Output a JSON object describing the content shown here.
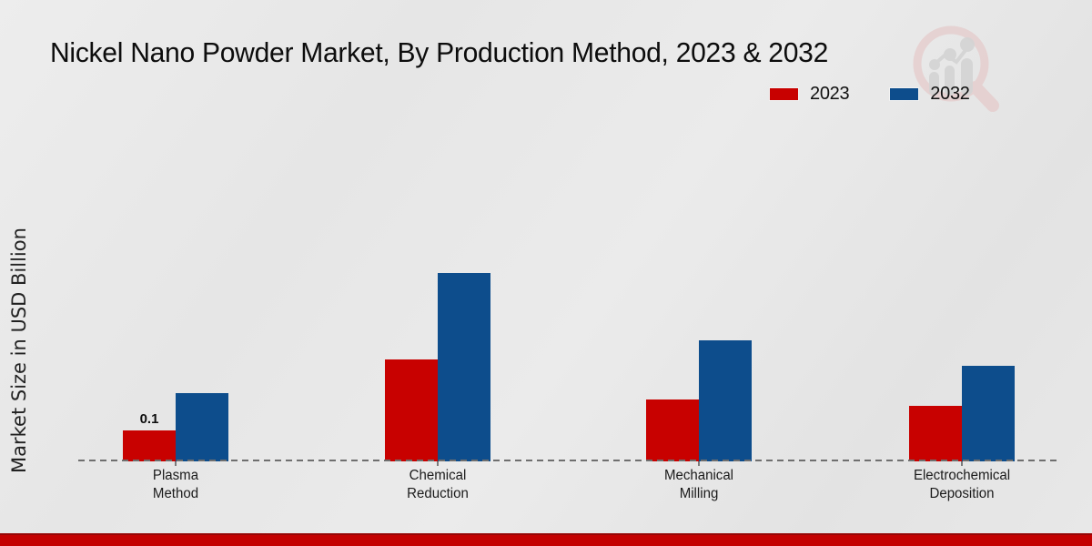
{
  "chart_data": {
    "type": "bar",
    "title": "Nickel Nano Powder Market, By Production Method, 2023 & 2032",
    "xlabel": "",
    "ylabel": "Market Size in USD Billion",
    "categories": [
      "Plasma Method",
      "Chemical Reduction",
      "Mechanical Milling",
      "Electrochemical Deposition"
    ],
    "categories_lines": [
      [
        "Plasma",
        "Method"
      ],
      [
        "Chemical",
        "Reduction"
      ],
      [
        "Mechanical",
        "Milling"
      ],
      [
        "Electrochemical",
        "Deposition"
      ]
    ],
    "series": [
      {
        "name": "2023",
        "color": "#c80100",
        "values": [
          0.1,
          0.33,
          0.2,
          0.18
        ]
      },
      {
        "name": "2032",
        "color": "#0d4d8c",
        "values": [
          0.22,
          0.61,
          0.39,
          0.31
        ]
      }
    ],
    "annotations": [
      {
        "series_index": 0,
        "category_index": 0,
        "text": "0.1"
      }
    ],
    "ylim": [
      0,
      0.68
    ],
    "grid": false,
    "legend_position": "top-right",
    "baseline_style": "dashed",
    "axis_line_color": "#6f6f6f"
  },
  "branding": {
    "watermark_icon": "magnifier-growth-chart-logo",
    "watermark_ring_color": "#e5cbcb",
    "watermark_bars_color": "#d4d4d4",
    "footer_bar_color": "#c30101"
  }
}
